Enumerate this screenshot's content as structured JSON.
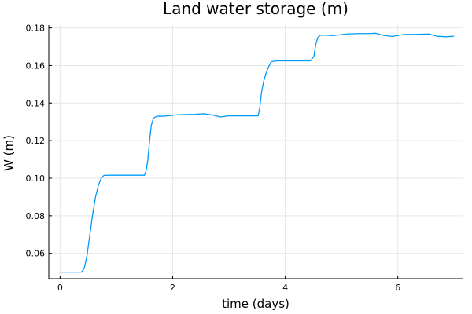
{
  "chart_data": {
    "type": "line",
    "title": "Land water storage (m)",
    "xlabel": "time (days)",
    "ylabel": "W (m)",
    "xlim": [
      -0.2,
      7.15
    ],
    "ylim": [
      0.0465,
      0.1815
    ],
    "xticks": [
      0,
      2,
      4,
      6
    ],
    "xtick_labels": [
      "0",
      "2",
      "4",
      "6"
    ],
    "yticks": [
      0.06,
      0.08,
      0.1,
      0.12,
      0.14,
      0.16,
      0.18
    ],
    "ytick_labels": [
      "0.06",
      "0.08",
      "0.10",
      "0.12",
      "0.14",
      "0.16",
      "0.18"
    ],
    "grid": true,
    "legend": "none",
    "line_color": "#009af9",
    "series": [
      {
        "x": [
          0.0,
          0.2,
          0.38,
          0.43,
          0.48,
          0.53,
          0.58,
          0.63,
          0.68,
          0.73,
          0.78,
          0.85,
          1.0,
          1.2,
          1.4,
          1.5,
          1.53,
          1.56,
          1.59,
          1.62,
          1.66,
          1.72,
          1.85,
          2.1,
          2.4,
          2.55,
          2.7,
          2.85,
          3.0,
          3.2,
          3.45,
          3.52,
          3.55,
          3.58,
          3.62,
          3.66,
          3.7,
          3.75,
          3.85,
          4.0,
          4.2,
          4.45,
          4.51,
          4.54,
          4.58,
          4.63,
          4.7,
          4.85,
          5.1,
          5.3,
          5.5,
          5.6,
          5.75,
          5.9,
          6.1,
          6.3,
          6.55,
          6.7,
          6.85,
          7.0
        ],
        "y": [
          0.05,
          0.05,
          0.05,
          0.052,
          0.059,
          0.07,
          0.081,
          0.09,
          0.096,
          0.1,
          0.1015,
          0.1016,
          0.1016,
          0.1016,
          0.1016,
          0.1016,
          0.104,
          0.11,
          0.12,
          0.128,
          0.132,
          0.133,
          0.133,
          0.1338,
          0.134,
          0.1343,
          0.1337,
          0.1326,
          0.1332,
          0.1332,
          0.1332,
          0.1332,
          0.138,
          0.146,
          0.152,
          0.156,
          0.159,
          0.162,
          0.1625,
          0.1625,
          0.1625,
          0.1625,
          0.165,
          0.171,
          0.175,
          0.1762,
          0.1762,
          0.1759,
          0.1768,
          0.177,
          0.177,
          0.1772,
          0.176,
          0.1755,
          0.1765,
          0.1766,
          0.1768,
          0.1756,
          0.1753,
          0.1756
        ]
      }
    ]
  }
}
